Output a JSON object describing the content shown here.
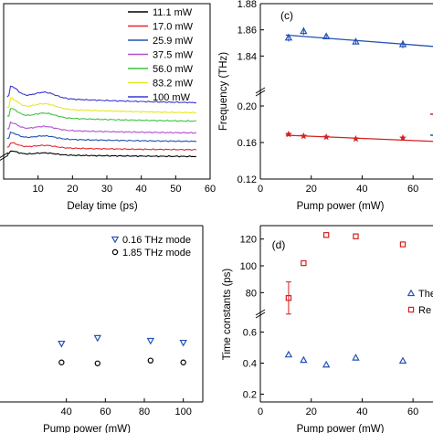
{
  "chart_data": [
    {
      "panel": "a",
      "type": "line",
      "xlabel": "Delay time (ps)",
      "ylabel": "",
      "xlim": [
        0,
        60
      ],
      "xticks": [
        10,
        20,
        30,
        40,
        50,
        60
      ],
      "legend_position": "top-right",
      "series": [
        {
          "name": "11.1 mW",
          "color": "#000000",
          "level": 0.0
        },
        {
          "name": "17.0 mW",
          "color": "#e8262a",
          "level": 0.08
        },
        {
          "name": "25.9 mW",
          "color": "#2452b3",
          "level": 0.18
        },
        {
          "name": "37.5 mW",
          "color": "#b34fcf",
          "level": 0.28
        },
        {
          "name": "56.0 mW",
          "color": "#3fc23f",
          "level": 0.42
        },
        {
          "name": "83.2 mW",
          "color": "#e8e81e",
          "level": 0.52
        },
        {
          "name": "100 mW",
          "color": "#3a3ad0",
          "level": 0.64
        }
      ]
    },
    {
      "panel": "c",
      "label": "(c)",
      "type": "scatter",
      "xlabel": "Pump power (mW)",
      "ylabel": "Frequency (THz)",
      "xlim": [
        0,
        70
      ],
      "xticks": [
        0,
        20,
        40,
        60
      ],
      "ylim_upper": [
        1.82,
        1.88
      ],
      "yticks_upper": [
        "1.84",
        "1.86",
        "1.88"
      ],
      "ylim_lower": [
        0.12,
        0.21
      ],
      "yticks_lower": [
        "0.12",
        "0.16",
        "0.20"
      ],
      "series": [
        {
          "name": "1.85 THz mode",
          "color": "#2452b3",
          "marker": "triangle",
          "x": [
            11.1,
            17.0,
            25.9,
            37.5,
            56.0
          ],
          "y": [
            1.854,
            1.859,
            1.855,
            1.851,
            1.849
          ],
          "err": [
            0.003,
            0.003,
            0.002,
            0.002,
            0.003
          ],
          "fit": [
            [
              10,
              1.856
            ],
            [
              70,
              1.847
            ]
          ]
        },
        {
          "name": "0.16 THz mode",
          "color": "#d42020",
          "marker": "star",
          "x": [
            11.1,
            17.0,
            25.9,
            37.5,
            56.0
          ],
          "y": [
            0.169,
            0.167,
            0.166,
            0.164,
            0.165
          ],
          "fit": [
            [
              10,
              0.168
            ],
            [
              70,
              0.161
            ]
          ]
        }
      ]
    },
    {
      "panel": "b",
      "type": "scatter",
      "xlabel": "Pump power (mW)",
      "xticks": [
        40,
        60,
        80,
        100
      ],
      "xlim": [
        20,
        110
      ],
      "legend_position": "top-right",
      "series": [
        {
          "name": "0.16 THz mode",
          "color": "#2452b3",
          "marker": "triangle-down",
          "x": [
            37.5,
            56.0,
            83.2,
            100
          ],
          "y": [
            0.62,
            0.68,
            0.65,
            0.63
          ]
        },
        {
          "name": "1.85 THz mode",
          "color": "#000000",
          "marker": "circle",
          "x": [
            37.5,
            56.0,
            83.2,
            100
          ],
          "y": [
            0.42,
            0.41,
            0.44,
            0.42
          ]
        }
      ]
    },
    {
      "panel": "d",
      "label": "(d)",
      "type": "scatter",
      "xlabel": "Pump power (mW)",
      "ylabel": "Time constants (ps)",
      "xlim": [
        0,
        70
      ],
      "xticks": [
        0,
        20,
        40,
        60
      ],
      "ylim_upper": [
        70,
        130
      ],
      "yticks_upper": [
        "80",
        "100",
        "120"
      ],
      "ylim_lower": [
        0.15,
        0.65
      ],
      "yticks_lower": [
        "0.2",
        "0.4",
        "0.6"
      ],
      "series": [
        {
          "name": "Re",
          "color": "#d42020",
          "marker": "square",
          "x": [
            11.1,
            17.0,
            25.9,
            37.5,
            56.0
          ],
          "y": [
            76,
            102,
            123,
            122,
            116
          ],
          "err": [
            12,
            0,
            0,
            0,
            0
          ]
        },
        {
          "name": "The",
          "color": "#2452b3",
          "marker": "triangle",
          "x": [
            11.1,
            17.0,
            25.9,
            37.5,
            56.0
          ],
          "y": [
            0.455,
            0.42,
            0.39,
            0.435,
            0.415
          ]
        }
      ]
    }
  ]
}
